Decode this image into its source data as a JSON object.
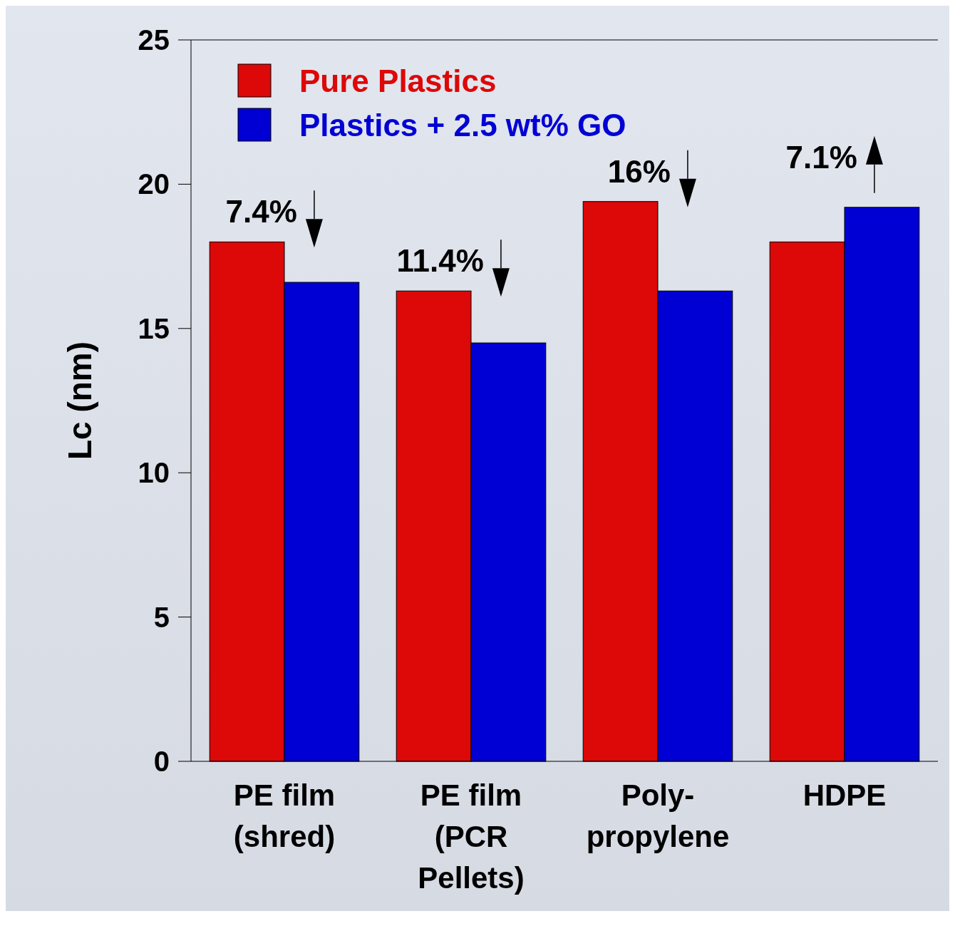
{
  "chart_data": {
    "type": "bar",
    "ylabel": "Lc (nm)",
    "categories": [
      "PE film (shred)",
      "PE film (PCR Pellets)",
      "Poly-propylene",
      "HDPE"
    ],
    "series": [
      {
        "name": "Pure Plastics",
        "color": "#dd0808",
        "values": [
          18.0,
          16.3,
          19.4,
          18.0
        ]
      },
      {
        "name": "Plastics + 2.5 wt% GO",
        "color": "#0000d4",
        "values": [
          16.6,
          14.5,
          16.3,
          19.2
        ]
      }
    ],
    "ylim": [
      0,
      25
    ],
    "yticks": [
      0,
      5,
      10,
      15,
      20,
      25
    ],
    "grid": false,
    "legend": "top left",
    "annotations": [
      "7.4%",
      "11.4%",
      "16%",
      "7.1%"
    ]
  }
}
